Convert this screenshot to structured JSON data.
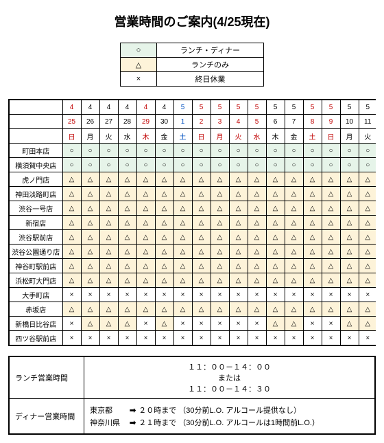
{
  "title": "営業時間のご案内(4/25現在)",
  "legend_rows": [
    {
      "sym": "○",
      "label": "ランチ・ディナー",
      "bg": "#e6f4e9"
    },
    {
      "sym": "△",
      "label": "ランチのみ",
      "bg": "#fdf3d9"
    },
    {
      "sym": "×",
      "label": "終日休業",
      "bg": "#ffffff"
    }
  ],
  "header": {
    "month_row": [
      "4",
      "4",
      "4",
      "4",
      "4",
      "4",
      "5",
      "5",
      "5",
      "5",
      "5",
      "5",
      "5",
      "5",
      "5",
      "5",
      "5"
    ],
    "date_row": [
      "25",
      "26",
      "27",
      "28",
      "29",
      "30",
      "1",
      "2",
      "3",
      "4",
      "5",
      "6",
      "7",
      "8",
      "9",
      "10",
      "11"
    ],
    "dow_row": [
      "日",
      "月",
      "火",
      "水",
      "木",
      "金",
      "土",
      "日",
      "月",
      "火",
      "水",
      "木",
      "金",
      "土",
      "日",
      "月",
      "火"
    ],
    "color_class": [
      "txt-red",
      "txt-black",
      "txt-black",
      "txt-black",
      "txt-red",
      "txt-black",
      "txt-blue",
      "txt-red",
      "txt-red",
      "txt-red",
      "txt-red",
      "txt-black",
      "txt-black",
      "txt-red",
      "txt-red",
      "txt-black",
      "txt-black"
    ]
  },
  "symbol_meta": {
    "○": {
      "bg": "bg-green"
    },
    "△": {
      "bg": "bg-cream"
    },
    "×": {
      "bg": ""
    }
  },
  "stores": [
    {
      "name": "町田本店",
      "cells": [
        "○",
        "○",
        "○",
        "○",
        "○",
        "○",
        "○",
        "○",
        "○",
        "○",
        "○",
        "○",
        "○",
        "○",
        "○",
        "○",
        "○"
      ]
    },
    {
      "name": "横須賀中央店",
      "cells": [
        "○",
        "○",
        "○",
        "○",
        "○",
        "○",
        "○",
        "○",
        "○",
        "○",
        "○",
        "○",
        "○",
        "○",
        "○",
        "○",
        "○"
      ]
    },
    {
      "name": "虎ノ門店",
      "cells": [
        "△",
        "△",
        "△",
        "△",
        "△",
        "△",
        "△",
        "△",
        "△",
        "△",
        "△",
        "△",
        "△",
        "△",
        "△",
        "△",
        "△"
      ]
    },
    {
      "name": "神田淡路町店",
      "cells": [
        "△",
        "△",
        "△",
        "△",
        "△",
        "△",
        "△",
        "△",
        "△",
        "△",
        "△",
        "△",
        "△",
        "△",
        "△",
        "△",
        "△"
      ]
    },
    {
      "name": "渋谷一号店",
      "cells": [
        "△",
        "△",
        "△",
        "△",
        "△",
        "△",
        "△",
        "△",
        "△",
        "△",
        "△",
        "△",
        "△",
        "△",
        "△",
        "△",
        "△"
      ]
    },
    {
      "name": "新宿店",
      "cells": [
        "△",
        "△",
        "△",
        "△",
        "△",
        "△",
        "△",
        "△",
        "△",
        "△",
        "△",
        "△",
        "△",
        "△",
        "△",
        "△",
        "△"
      ]
    },
    {
      "name": "渋谷駅前店",
      "cells": [
        "△",
        "△",
        "△",
        "△",
        "△",
        "△",
        "△",
        "△",
        "△",
        "△",
        "△",
        "△",
        "△",
        "△",
        "△",
        "△",
        "△"
      ]
    },
    {
      "name": "渋谷公園通り店",
      "cells": [
        "△",
        "△",
        "△",
        "△",
        "△",
        "△",
        "△",
        "△",
        "△",
        "△",
        "△",
        "△",
        "△",
        "△",
        "△",
        "△",
        "△"
      ]
    },
    {
      "name": "神谷町駅前店",
      "cells": [
        "△",
        "△",
        "△",
        "△",
        "△",
        "△",
        "△",
        "△",
        "△",
        "△",
        "△",
        "△",
        "△",
        "△",
        "△",
        "△",
        "△"
      ]
    },
    {
      "name": "浜松町大門店",
      "cells": [
        "△",
        "△",
        "△",
        "△",
        "△",
        "△",
        "△",
        "△",
        "△",
        "△",
        "△",
        "△",
        "△",
        "△",
        "△",
        "△",
        "△"
      ]
    },
    {
      "name": "大手町店",
      "cells": [
        "×",
        "×",
        "×",
        "×",
        "×",
        "×",
        "×",
        "×",
        "×",
        "×",
        "×",
        "×",
        "×",
        "×",
        "×",
        "×",
        "×"
      ]
    },
    {
      "name": "赤坂店",
      "cells": [
        "△",
        "△",
        "△",
        "△",
        "△",
        "△",
        "△",
        "△",
        "△",
        "△",
        "△",
        "△",
        "△",
        "△",
        "△",
        "△",
        "△"
      ]
    },
    {
      "name": "新橋日比谷店",
      "cells": [
        "×",
        "△",
        "△",
        "△",
        "×",
        "△",
        "×",
        "×",
        "×",
        "×",
        "×",
        "△",
        "△",
        "×",
        "×",
        "△",
        "△"
      ]
    },
    {
      "name": "四ツ谷駅前店",
      "cells": [
        "×",
        "×",
        "×",
        "×",
        "×",
        "×",
        "×",
        "×",
        "×",
        "×",
        "×",
        "×",
        "×",
        "×",
        "×",
        "×",
        "×"
      ]
    }
  ],
  "hours": {
    "lunch_label": "ランチ営業時間",
    "lunch_line1": "１１：００－１４：００",
    "lunch_line2": "または",
    "lunch_line3": "１１：００－１４：３０",
    "dinner_label": "ディナー営業時間",
    "dinner_rows": [
      {
        "area": "東京都",
        "arrow": "➡",
        "text": "２０時まで （30分前L.O. アルコール提供なし）"
      },
      {
        "area": "神奈川県",
        "arrow": "➡",
        "text": "２１時まで （30分前L.O. アルコールは1時間前L.O.）"
      }
    ]
  },
  "colors": {
    "green": "#e6f4e9",
    "cream": "#fdf3d9",
    "red_text": "#c00000",
    "blue_text": "#0050c0",
    "border": "#000000"
  }
}
